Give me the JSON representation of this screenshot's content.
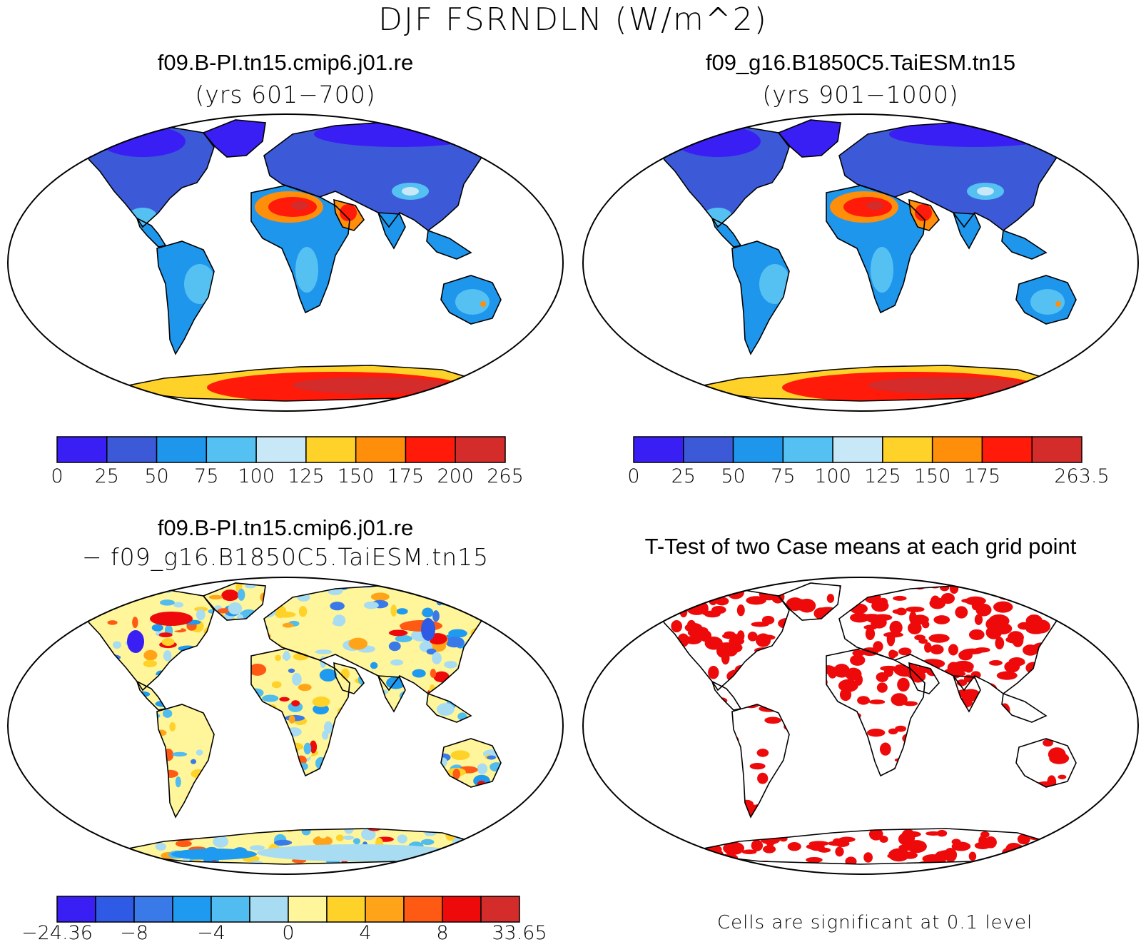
{
  "title": "DJF FSRNDLN (W/m^2)",
  "panels": [
    {
      "id": "case1",
      "title": "f09.B-PI.tn15.cmip6.j01.re",
      "subtitle": "(yrs 601−700)",
      "colorbar": {
        "colors": [
          "#3a1ff4",
          "#3c5ad8",
          "#1e96ec",
          "#55c0f2",
          "#c8e8f8",
          "#ffd22a",
          "#ff8e0a",
          "#ff1a0a",
          "#d42b2b"
        ],
        "labels": [
          "0",
          "25",
          "50",
          "75",
          "100",
          "125",
          "150",
          "175",
          "200",
          "265"
        ]
      }
    },
    {
      "id": "case2",
      "title": "f09_g16.B1850C5.TaiESM.tn15",
      "subtitle": "(yrs 901−1000)",
      "colorbar": {
        "colors": [
          "#3a1ff4",
          "#3c5ad8",
          "#1e96ec",
          "#55c0f2",
          "#c8e8f8",
          "#ffd22a",
          "#ff8e0a",
          "#ff1a0a",
          "#d42b2b"
        ],
        "labels": [
          "0",
          "25",
          "50",
          "75",
          "100",
          "125",
          "150",
          "175",
          "",
          "263.5"
        ]
      }
    },
    {
      "id": "difference",
      "title": "f09.B-PI.tn15.cmip6.j01.re",
      "subtitle": "− f09_g16.B1850C5.TaiESM.tn15",
      "colorbar": {
        "colors": [
          "#3a1ff4",
          "#2e5ae6",
          "#3a7ae8",
          "#1e9af0",
          "#50bcf0",
          "#a8dcf2",
          "#fff59a",
          "#ffd22a",
          "#ffa418",
          "#ff5a14",
          "#ee0a0a",
          "#d42b2b"
        ],
        "labels": [
          "−24.36",
          "",
          "−8",
          "",
          "−4",
          "",
          "0",
          "",
          "4",
          "",
          "8",
          "",
          "33.65"
        ]
      }
    },
    {
      "id": "ttest",
      "title": "T-Test of two Case means at each grid point",
      "footnote": "Cells are significant at 0.1 level",
      "significant_color": "#ee0a0a"
    }
  ]
}
